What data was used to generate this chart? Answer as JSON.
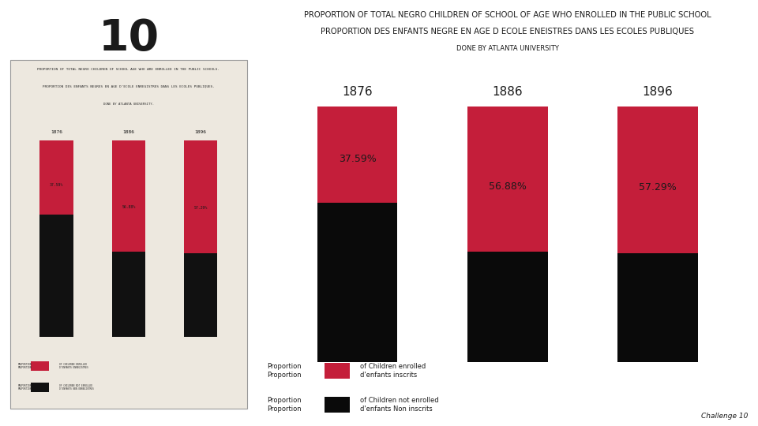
{
  "title_line1": "PROPORTION OF TOTAL NEGRO CHILDREN OF SCHOOL OF AGE WHO ENROLLED IN THE PUBLIC SCHOOL",
  "title_line2": "PROPORTION DES ENFANTS NEGRE EN AGE D ECOLE ENEISTRES DANS LES ECOLES PUBLIQUES",
  "subtitle": "DONE BY ATLANTA UNIVERSITY",
  "years": [
    "1876",
    "1886",
    "1896"
  ],
  "enrolled_pct": [
    37.59,
    56.88,
    57.29
  ],
  "not_enrolled_pct": [
    62.41,
    43.12,
    42.71
  ],
  "enrolled_labels": [
    "37.59%",
    "56.88%",
    "57.29%"
  ],
  "enrolled_color": "#C41E3A",
  "not_enrolled_color": "#0a0a0a",
  "bg_color": "#D6CBC6",
  "left_panel_bg": "#F5EFE8",
  "text_color": "#1a1a1a",
  "challenge_text": "Challenge 10",
  "figsize": [
    9.6,
    5.4
  ],
  "dpi": 100
}
